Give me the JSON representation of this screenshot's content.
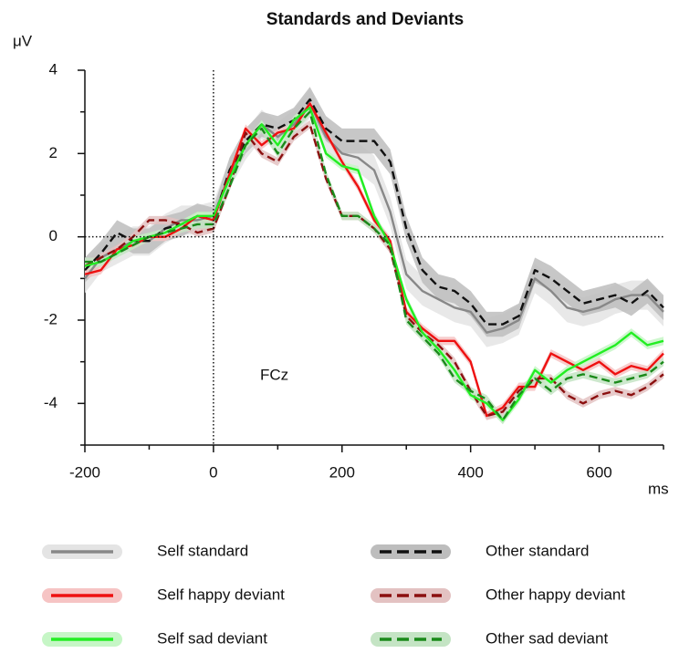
{
  "chart_data": {
    "type": "line",
    "title": "Standards and Deviants",
    "y_unit": "μV",
    "x_unit": "ms",
    "annotation": "FCz",
    "x": [
      -200,
      -175,
      -150,
      -125,
      -100,
      -75,
      -50,
      -25,
      0,
      25,
      50,
      75,
      100,
      125,
      150,
      175,
      200,
      225,
      250,
      275,
      300,
      325,
      350,
      375,
      400,
      425,
      450,
      475,
      500,
      525,
      550,
      575,
      600,
      625,
      650,
      675,
      700
    ],
    "series": [
      {
        "name": "Self standard",
        "color": "#888888",
        "band_color": "#e4e4e4",
        "dash": false,
        "error": 0.35,
        "values": [
          -1.0,
          -0.5,
          -0.3,
          -0.1,
          -0.1,
          0.2,
          0.4,
          0.4,
          0.5,
          1.5,
          2.2,
          2.7,
          2.4,
          2.7,
          3.2,
          2.4,
          2.0,
          1.9,
          1.6,
          0.6,
          -0.9,
          -1.3,
          -1.5,
          -1.7,
          -1.8,
          -2.3,
          -2.2,
          -2.0,
          -1.0,
          -1.3,
          -1.7,
          -1.8,
          -1.7,
          -1.5,
          -1.4,
          -1.4,
          -1.8
        ]
      },
      {
        "name": "Other standard",
        "color": "#111111",
        "band_color": "#bdbdbd",
        "dash": true,
        "error": 0.3,
        "values": [
          -0.8,
          -0.4,
          0.1,
          -0.1,
          -0.1,
          0.2,
          0.3,
          0.5,
          0.4,
          1.6,
          2.3,
          2.7,
          2.6,
          2.8,
          3.3,
          2.6,
          2.3,
          2.3,
          2.3,
          1.8,
          0.2,
          -0.8,
          -1.2,
          -1.3,
          -1.6,
          -2.1,
          -2.1,
          -1.9,
          -0.8,
          -1.0,
          -1.3,
          -1.6,
          -1.5,
          -1.4,
          -1.6,
          -1.3,
          -1.7
        ]
      },
      {
        "name": "Self happy deviant",
        "color": "#ee1111",
        "band_color": "#f6c4c4",
        "dash": false,
        "error": 0.1,
        "values": [
          -0.9,
          -0.8,
          -0.3,
          -0.2,
          0.0,
          0.0,
          0.2,
          0.5,
          0.4,
          1.5,
          2.6,
          2.2,
          2.5,
          2.6,
          3.2,
          2.5,
          1.8,
          1.2,
          0.4,
          -0.1,
          -1.8,
          -2.2,
          -2.5,
          -2.5,
          -3.0,
          -4.3,
          -4.1,
          -3.6,
          -3.6,
          -2.8,
          -3.0,
          -3.2,
          -3.0,
          -3.3,
          -3.1,
          -3.2,
          -2.8
        ]
      },
      {
        "name": "Other happy deviant",
        "color": "#8b1010",
        "band_color": "#e3c2c2",
        "dash": true,
        "error": 0.1,
        "values": [
          -0.7,
          -0.5,
          -0.3,
          0.0,
          0.4,
          0.4,
          0.3,
          0.1,
          0.2,
          1.2,
          2.5,
          2.0,
          1.8,
          2.4,
          2.7,
          1.4,
          0.5,
          0.5,
          0.2,
          -0.3,
          -1.9,
          -2.3,
          -2.6,
          -3.0,
          -3.7,
          -4.3,
          -4.2,
          -3.7,
          -3.4,
          -3.4,
          -3.8,
          -4.0,
          -3.8,
          -3.7,
          -3.8,
          -3.6,
          -3.3
        ]
      },
      {
        "name": "Self sad deviant",
        "color": "#22ee22",
        "band_color": "#c6f6c6",
        "dash": false,
        "error": 0.1,
        "values": [
          -0.7,
          -0.6,
          -0.4,
          -0.1,
          0.0,
          0.1,
          0.3,
          0.5,
          0.5,
          1.4,
          2.2,
          2.7,
          2.2,
          2.8,
          3.1,
          2.0,
          1.7,
          1.6,
          0.5,
          -0.2,
          -1.5,
          -2.3,
          -2.7,
          -3.2,
          -3.8,
          -4.0,
          -4.4,
          -3.9,
          -3.2,
          -3.5,
          -3.2,
          -3.0,
          -2.8,
          -2.6,
          -2.3,
          -2.6,
          -2.5
        ]
      },
      {
        "name": "Other sad deviant",
        "color": "#1a8a1a",
        "band_color": "#c4e4c4",
        "dash": true,
        "error": 0.1,
        "values": [
          -0.6,
          -0.6,
          -0.4,
          -0.2,
          0.0,
          0.1,
          0.2,
          0.3,
          0.3,
          1.2,
          2.2,
          2.6,
          2.0,
          2.6,
          3.0,
          1.5,
          0.5,
          0.5,
          0.2,
          -0.2,
          -2.0,
          -2.4,
          -2.8,
          -3.4,
          -3.7,
          -3.9,
          -4.4,
          -3.8,
          -3.4,
          -3.7,
          -3.4,
          -3.3,
          -3.4,
          -3.5,
          -3.4,
          -3.3,
          -3.0
        ]
      }
    ],
    "xlim": [
      -200,
      700
    ],
    "ylim": [
      -5,
      4
    ],
    "xticks": [
      -200,
      0,
      200,
      400,
      600
    ],
    "yticks": [
      -4,
      -2,
      0,
      2,
      4
    ],
    "x_minor_ticks": [
      -100,
      100,
      300,
      500,
      700
    ],
    "y_minor_ticks": [
      -5,
      -3,
      -1,
      1,
      3
    ],
    "zero_lines": true,
    "legend_columns": 2
  }
}
